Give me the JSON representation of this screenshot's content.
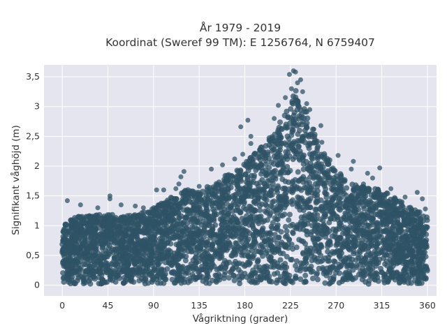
{
  "chart_data": {
    "type": "scatter",
    "title": "År 1979 - 2019",
    "subtitle": "Koordinat (Sweref 99 TM): E 1256764, N 6759407",
    "xlabel": "Vågriktning (grader)",
    "ylabel": "Signifikant våghöjd (m)",
    "xlim": [
      -18,
      369
    ],
    "ylim": [
      -0.18,
      3.7
    ],
    "x_ticks": [
      0,
      45,
      90,
      135,
      180,
      225,
      270,
      315,
      360
    ],
    "x_tick_labels": [
      "0",
      "45",
      "90",
      "135",
      "180",
      "225",
      "270",
      "315",
      "360"
    ],
    "y_ticks": [
      0,
      0.5,
      1,
      1.5,
      2,
      2.5,
      3,
      3.5
    ],
    "y_tick_labels": [
      "0",
      "0,5",
      "1",
      "1,5",
      "2",
      "2,5",
      "3",
      "3,5"
    ],
    "grid": true,
    "legend": "none",
    "colors": {
      "marker": "#2f5366",
      "plot_bg": "#e5e5ef",
      "grid": "#ffffff"
    },
    "envelope_x": [
      0,
      15,
      30,
      45,
      60,
      75,
      90,
      105,
      120,
      135,
      150,
      165,
      180,
      195,
      210,
      225,
      230,
      240,
      255,
      270,
      285,
      300,
      315,
      330,
      345,
      360
    ],
    "envelope_ymax": [
      1.05,
      1.15,
      1.2,
      1.2,
      1.15,
      1.2,
      1.3,
      1.45,
      1.6,
      1.6,
      1.7,
      1.9,
      2.05,
      2.3,
      2.6,
      3.05,
      3.3,
      2.95,
      2.3,
      1.95,
      1.7,
      1.65,
      1.6,
      1.45,
      1.3,
      1.15
    ],
    "points": [
      {
        "x": 228,
        "y": 3.6
      },
      {
        "x": 230,
        "y": 3.58
      },
      {
        "x": 224,
        "y": 3.54
      },
      {
        "x": 235,
        "y": 3.45
      },
      {
        "x": 232,
        "y": 3.4
      },
      {
        "x": 226,
        "y": 3.3
      },
      {
        "x": 237,
        "y": 3.25
      },
      {
        "x": 220,
        "y": 3.15
      },
      {
        "x": 241,
        "y": 3.05
      },
      {
        "x": 213,
        "y": 3.02
      },
      {
        "x": 244,
        "y": 2.95
      },
      {
        "x": 209,
        "y": 2.8
      },
      {
        "x": 183,
        "y": 2.77
      },
      {
        "x": 176,
        "y": 2.66
      },
      {
        "x": 255,
        "y": 2.68
      },
      {
        "x": 248,
        "y": 2.62
      },
      {
        "x": 186,
        "y": 2.5
      },
      {
        "x": 186,
        "y": 2.38
      },
      {
        "x": 205,
        "y": 2.42
      },
      {
        "x": 256,
        "y": 2.4
      },
      {
        "x": 272,
        "y": 2.18
      },
      {
        "x": 287,
        "y": 2.08
      },
      {
        "x": 285,
        "y": 1.95
      },
      {
        "x": 313,
        "y": 1.97
      },
      {
        "x": 301,
        "y": 1.88
      },
      {
        "x": 306,
        "y": 1.8
      },
      {
        "x": 178,
        "y": 2.2
      },
      {
        "x": 170,
        "y": 2.12
      },
      {
        "x": 158,
        "y": 2.02
      },
      {
        "x": 147,
        "y": 1.95
      },
      {
        "x": 120,
        "y": 1.91
      },
      {
        "x": 117,
        "y": 1.82
      },
      {
        "x": 115,
        "y": 1.7
      },
      {
        "x": 112,
        "y": 1.62
      },
      {
        "x": 100,
        "y": 1.6
      },
      {
        "x": 93,
        "y": 1.6
      },
      {
        "x": 135,
        "y": 1.66
      },
      {
        "x": 156,
        "y": 1.68
      },
      {
        "x": 47,
        "y": 1.5
      },
      {
        "x": 47,
        "y": 1.45
      },
      {
        "x": 5,
        "y": 1.42
      },
      {
        "x": 18,
        "y": 1.35
      },
      {
        "x": 35,
        "y": 1.3
      },
      {
        "x": 58,
        "y": 1.35
      },
      {
        "x": 72,
        "y": 1.33
      },
      {
        "x": 80,
        "y": 1.3
      },
      {
        "x": 324,
        "y": 1.62
      },
      {
        "x": 338,
        "y": 1.48
      },
      {
        "x": 350,
        "y": 1.56
      },
      {
        "x": 355,
        "y": 1.45
      },
      {
        "x": 358,
        "y": 1.28
      },
      {
        "x": 335,
        "y": 1.4
      },
      {
        "x": 265,
        "y": 1.95
      },
      {
        "x": 275,
        "y": 1.85
      },
      {
        "x": 297,
        "y": 1.7
      },
      {
        "x": 320,
        "y": 1.55
      }
    ]
  }
}
